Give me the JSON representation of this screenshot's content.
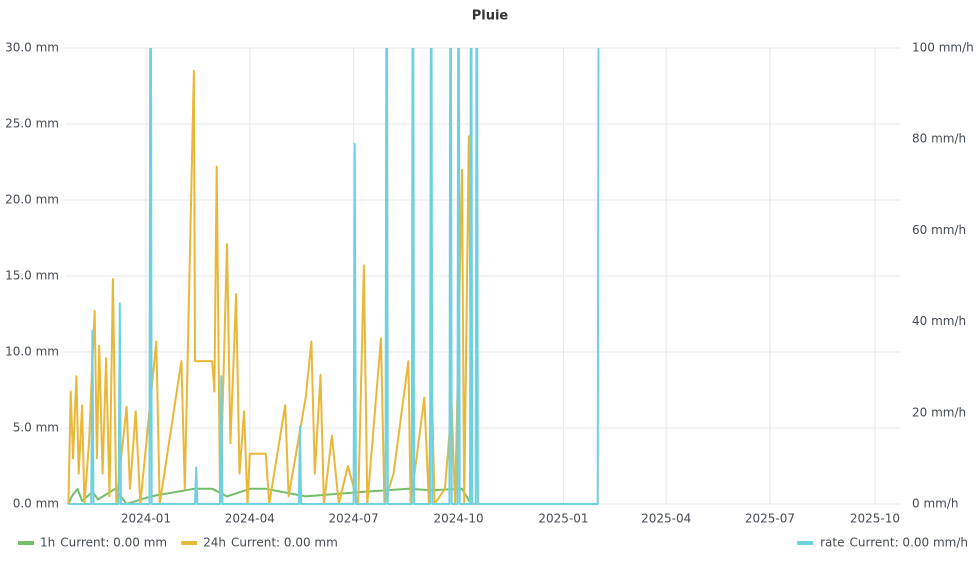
{
  "chart_data": {
    "type": "line",
    "title": "Pluie",
    "xlim": [
      "2023-10-22",
      "2025-10-23"
    ],
    "xticks": [
      "2024-01",
      "2024-04",
      "2024-07",
      "2024-10",
      "2025-01",
      "2025-04",
      "2025-07",
      "2025-10"
    ],
    "ylim": [
      0,
      30
    ],
    "yticks": [
      {
        "value": 0,
        "label": "0.0 mm"
      },
      {
        "value": 5,
        "label": "5.0 mm"
      },
      {
        "value": 10,
        "label": "10.0 mm"
      },
      {
        "value": 15,
        "label": "15.0 mm"
      },
      {
        "value": 20,
        "label": "20.0 mm"
      },
      {
        "value": 25,
        "label": "25.0 mm"
      },
      {
        "value": 30,
        "label": "30.0 mm"
      }
    ],
    "y2lim": [
      0,
      100
    ],
    "y2ticks": [
      {
        "value": 0,
        "label": "0 mm/h"
      },
      {
        "value": 20,
        "label": "20 mm/h"
      },
      {
        "value": 40,
        "label": "40 mm/h"
      },
      {
        "value": 60,
        "label": "60 mm/h"
      },
      {
        "value": 80,
        "label": "80 mm/h"
      },
      {
        "value": 100,
        "label": "100 mm/h"
      }
    ],
    "grid": true,
    "series": [
      {
        "name": "1h",
        "color": "#73bf69",
        "legend_value": "Current: 0.00 mm",
        "x": [
          "2023-10-25",
          "2023-10-28",
          "2023-11-02",
          "2023-11-06",
          "2023-11-15",
          "2023-11-20",
          "2023-12-05",
          "2023-12-15",
          "2024-01-05",
          "2024-02-12",
          "2024-02-28",
          "2024-03-12",
          "2024-04-01",
          "2024-04-15",
          "2024-05-20",
          "2024-07-10",
          "2024-08-18",
          "2024-09-07",
          "2024-10-04",
          "2024-10-12",
          "2025-01-25"
        ],
        "values": [
          0,
          0.5,
          1,
          0.2,
          0.8,
          0.3,
          1,
          0,
          0.5,
          1,
          1,
          0.5,
          1,
          1,
          0.5,
          0.8,
          1,
          0.9,
          1,
          0,
          0
        ]
      },
      {
        "name": "24h",
        "color": "#eab839",
        "legend_value": "Current: 0.00 mm",
        "x": [
          "2023-10-25",
          "2023-10-27",
          "2023-10-29",
          "2023-11-01",
          "2023-11-03",
          "2023-11-06",
          "2023-11-08",
          "2023-11-12",
          "2023-11-15",
          "2023-11-17",
          "2023-11-19",
          "2023-11-21",
          "2023-11-24",
          "2023-11-27",
          "2023-11-30",
          "2023-12-03",
          "2023-12-06",
          "2023-12-15",
          "2023-12-18",
          "2023-12-23",
          "2023-12-27",
          "2024-01-10",
          "2024-01-13",
          "2024-02-01",
          "2024-02-04",
          "2024-02-12",
          "2024-02-13",
          "2024-02-28",
          "2024-03-01",
          "2024-03-03",
          "2024-03-06",
          "2024-03-12",
          "2024-03-15",
          "2024-03-20",
          "2024-03-23",
          "2024-03-27",
          "2024-03-30",
          "2024-04-01",
          "2024-04-15",
          "2024-04-18",
          "2024-05-02",
          "2024-05-05",
          "2024-05-20",
          "2024-05-25",
          "2024-05-28",
          "2024-06-02",
          "2024-06-05",
          "2024-06-12",
          "2024-06-18",
          "2024-06-26",
          "2024-07-05",
          "2024-07-10",
          "2024-07-13",
          "2024-07-20",
          "2024-07-25",
          "2024-07-28",
          "2024-08-05",
          "2024-08-18",
          "2024-08-20",
          "2024-09-01",
          "2024-09-05",
          "2024-09-07",
          "2024-09-10",
          "2024-09-19",
          "2024-09-25",
          "2024-09-28",
          "2024-10-04",
          "2024-10-06",
          "2024-10-10",
          "2024-10-13",
          "2024-10-20",
          "2025-01-25"
        ],
        "values": [
          0,
          7.4,
          3,
          8.4,
          2,
          6.5,
          0,
          4,
          9.4,
          12.7,
          3,
          10.4,
          2,
          9.6,
          0.5,
          14.8,
          0,
          6.4,
          1,
          6.1,
          0,
          10.7,
          0,
          9.4,
          1,
          28.5,
          9.4,
          9.4,
          7.4,
          22.2,
          0,
          17.1,
          4,
          13.8,
          2,
          6.1,
          0,
          3.3,
          3.3,
          0,
          6.5,
          0.5,
          7,
          10.7,
          2,
          8.5,
          0,
          4.5,
          0,
          2.5,
          0,
          15.7,
          0,
          6.4,
          10.9,
          0,
          2,
          9.4,
          0,
          7,
          0,
          9.4,
          0,
          1,
          6.4,
          0,
          22,
          0,
          24.2,
          0,
          0,
          0
        ]
      },
      {
        "name": "rate",
        "color": "#6ed0e0",
        "axis": "y2",
        "legend_value": "Current: 0.00 mm/h",
        "x": [
          "2023-10-25",
          "2023-11-14",
          "2023-11-15",
          "2023-11-16",
          "2023-12-08",
          "2023-12-09",
          "2023-12-10",
          "2024-01-04",
          "2024-01-05",
          "2024-01-06",
          "2024-02-13",
          "2024-02-14",
          "2024-02-15",
          "2024-03-06",
          "2024-03-07",
          "2024-03-08",
          "2024-05-14",
          "2024-05-15",
          "2024-05-16",
          "2024-07-01",
          "2024-07-02",
          "2024-07-03",
          "2024-07-29",
          "2024-07-30",
          "2024-07-31",
          "2024-08-21",
          "2024-08-22",
          "2024-08-23",
          "2024-09-06",
          "2024-09-07",
          "2024-09-08",
          "2024-09-23",
          "2024-09-24",
          "2024-09-25",
          "2024-09-30",
          "2024-10-01",
          "2024-10-02",
          "2024-10-11",
          "2024-10-12",
          "2024-10-13",
          "2024-10-16",
          "2024-10-17",
          "2024-10-18",
          "2025-01-31",
          "2025-02-01"
        ],
        "values": [
          0,
          0,
          38,
          0,
          0,
          44,
          0,
          0,
          150,
          0,
          0,
          8,
          0,
          0,
          28,
          0,
          0,
          17,
          0,
          0,
          79,
          0,
          0,
          150,
          0,
          0,
          150,
          0,
          0,
          150,
          0,
          0,
          150,
          0,
          0,
          150,
          0,
          0,
          150,
          0,
          0,
          150,
          0,
          0,
          150
        ]
      }
    ]
  }
}
